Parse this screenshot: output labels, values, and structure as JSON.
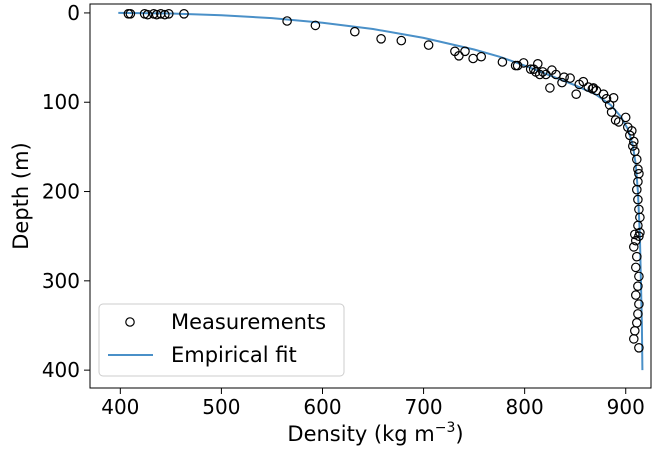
{
  "chart_data": {
    "type": "scatter",
    "xlabel": "Density (kg m",
    "xlabel_superscript": "−3",
    "xlabel_suffix": ")",
    "ylabel": "Depth (m)",
    "xlim": [
      370,
      925
    ],
    "ylim": [
      420,
      -10
    ],
    "y_inverted": true,
    "grid": false,
    "legend_position": "lower-left",
    "x_ticks": [
      400,
      500,
      600,
      700,
      800,
      900
    ],
    "y_ticks": [
      0,
      100,
      200,
      300,
      400
    ],
    "series": [
      {
        "name": "Measurements",
        "kind": "scatter",
        "marker": "open-circle",
        "color": "#000000",
        "points": [
          {
            "x": 408,
            "y": 1
          },
          {
            "x": 410,
            "y": 1
          },
          {
            "x": 424,
            "y": 1
          },
          {
            "x": 427,
            "y": 2
          },
          {
            "x": 433,
            "y": 1
          },
          {
            "x": 436,
            "y": 2
          },
          {
            "x": 440,
            "y": 1
          },
          {
            "x": 444,
            "y": 2
          },
          {
            "x": 448,
            "y": 1
          },
          {
            "x": 463,
            "y": 1
          },
          {
            "x": 565,
            "y": 9
          },
          {
            "x": 593,
            "y": 14
          },
          {
            "x": 632,
            "y": 21
          },
          {
            "x": 658,
            "y": 29
          },
          {
            "x": 678,
            "y": 31
          },
          {
            "x": 705,
            "y": 36
          },
          {
            "x": 731,
            "y": 43
          },
          {
            "x": 735,
            "y": 48
          },
          {
            "x": 741,
            "y": 43
          },
          {
            "x": 749,
            "y": 51
          },
          {
            "x": 757,
            "y": 49
          },
          {
            "x": 778,
            "y": 55
          },
          {
            "x": 791,
            "y": 59
          },
          {
            "x": 793,
            "y": 59
          },
          {
            "x": 799,
            "y": 56
          },
          {
            "x": 806,
            "y": 63
          },
          {
            "x": 809,
            "y": 63
          },
          {
            "x": 811,
            "y": 66
          },
          {
            "x": 813,
            "y": 57
          },
          {
            "x": 815,
            "y": 69
          },
          {
            "x": 818,
            "y": 66
          },
          {
            "x": 821,
            "y": 69
          },
          {
            "x": 825,
            "y": 84
          },
          {
            "x": 827,
            "y": 64
          },
          {
            "x": 831,
            "y": 69
          },
          {
            "x": 837,
            "y": 78
          },
          {
            "x": 839,
            "y": 72
          },
          {
            "x": 845,
            "y": 73
          },
          {
            "x": 851,
            "y": 91
          },
          {
            "x": 854,
            "y": 80
          },
          {
            "x": 858,
            "y": 77
          },
          {
            "x": 863,
            "y": 83
          },
          {
            "x": 867,
            "y": 85
          },
          {
            "x": 868,
            "y": 84
          },
          {
            "x": 871,
            "y": 87
          },
          {
            "x": 878,
            "y": 91
          },
          {
            "x": 881,
            "y": 96
          },
          {
            "x": 884,
            "y": 103
          },
          {
            "x": 888,
            "y": 95
          },
          {
            "x": 886,
            "y": 111
          },
          {
            "x": 890,
            "y": 120
          },
          {
            "x": 893,
            "y": 122
          },
          {
            "x": 900,
            "y": 117
          },
          {
            "x": 902,
            "y": 128
          },
          {
            "x": 904,
            "y": 137
          },
          {
            "x": 906,
            "y": 132
          },
          {
            "x": 908,
            "y": 144
          },
          {
            "x": 907,
            "y": 149
          },
          {
            "x": 909,
            "y": 155
          },
          {
            "x": 911,
            "y": 164
          },
          {
            "x": 912,
            "y": 175
          },
          {
            "x": 913,
            "y": 180
          },
          {
            "x": 912,
            "y": 189
          },
          {
            "x": 911,
            "y": 198
          },
          {
            "x": 912,
            "y": 209
          },
          {
            "x": 913,
            "y": 220
          },
          {
            "x": 914,
            "y": 229
          },
          {
            "x": 912,
            "y": 238
          },
          {
            "x": 914,
            "y": 246
          },
          {
            "x": 909,
            "y": 248
          },
          {
            "x": 913,
            "y": 250
          },
          {
            "x": 910,
            "y": 255
          },
          {
            "x": 908,
            "y": 262
          },
          {
            "x": 911,
            "y": 273
          },
          {
            "x": 910,
            "y": 285
          },
          {
            "x": 913,
            "y": 295
          },
          {
            "x": 912,
            "y": 306
          },
          {
            "x": 910,
            "y": 316
          },
          {
            "x": 913,
            "y": 326
          },
          {
            "x": 912,
            "y": 337
          },
          {
            "x": 911,
            "y": 347
          },
          {
            "x": 909,
            "y": 356
          },
          {
            "x": 908,
            "y": 365
          },
          {
            "x": 913,
            "y": 375
          }
        ]
      },
      {
        "name": "Empirical fit",
        "kind": "line",
        "color": "#4a90c8",
        "points": [
          {
            "x": 398,
            "y": 0
          },
          {
            "x": 450,
            "y": 0.6
          },
          {
            "x": 500,
            "y": 2.5
          },
          {
            "x": 550,
            "y": 5.8
          },
          {
            "x": 600,
            "y": 11
          },
          {
            "x": 650,
            "y": 18
          },
          {
            "x": 700,
            "y": 28
          },
          {
            "x": 750,
            "y": 41
          },
          {
            "x": 775,
            "y": 49
          },
          {
            "x": 800,
            "y": 59
          },
          {
            "x": 825,
            "y": 70
          },
          {
            "x": 850,
            "y": 81
          },
          {
            "x": 870,
            "y": 91
          },
          {
            "x": 885,
            "y": 103
          },
          {
            "x": 895,
            "y": 116
          },
          {
            "x": 902,
            "y": 130
          },
          {
            "x": 907,
            "y": 148
          },
          {
            "x": 910,
            "y": 170
          },
          {
            "x": 912,
            "y": 200
          },
          {
            "x": 914,
            "y": 250
          },
          {
            "x": 915,
            "y": 300
          },
          {
            "x": 916,
            "y": 350
          },
          {
            "x": 916.5,
            "y": 400
          }
        ]
      }
    ]
  }
}
